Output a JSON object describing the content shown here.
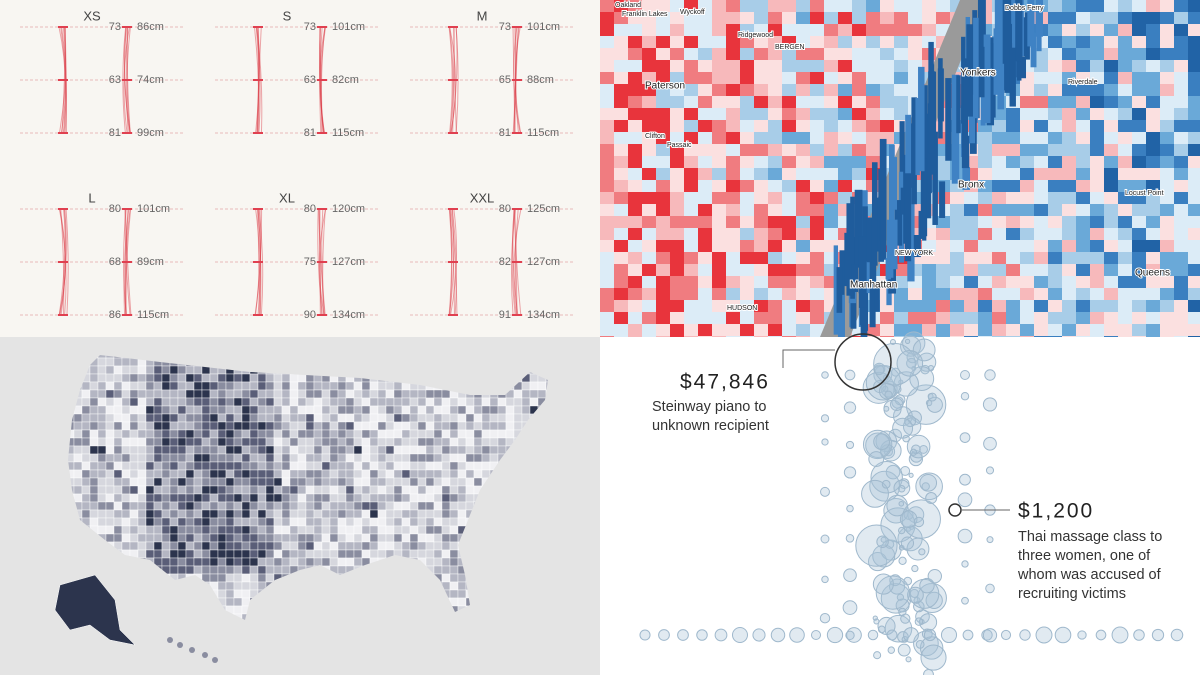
{
  "size_panels": [
    {
      "size": "XS",
      "rows": [
        {
          "left": 73,
          "right": "86cm"
        },
        {
          "left": 63,
          "right": "74cm"
        },
        {
          "left": 81,
          "right": "99cm"
        }
      ]
    },
    {
      "size": "S",
      "rows": [
        {
          "left": 73,
          "right": "101cm"
        },
        {
          "left": 63,
          "right": "82cm"
        },
        {
          "left": 81,
          "right": "115cm"
        }
      ]
    },
    {
      "size": "M",
      "rows": [
        {
          "left": 73,
          "right": "101cm"
        },
        {
          "left": 65,
          "right": "88cm"
        },
        {
          "left": 81,
          "right": "115cm"
        }
      ]
    },
    {
      "size": "L",
      "rows": [
        {
          "left": 80,
          "right": "101cm"
        },
        {
          "left": 68,
          "right": "89cm"
        },
        {
          "left": 86,
          "right": "115cm"
        }
      ]
    },
    {
      "size": "XL",
      "rows": [
        {
          "left": 80,
          "right": "120cm"
        },
        {
          "left": 75,
          "right": "127cm"
        },
        {
          "left": 90,
          "right": "134cm"
        }
      ]
    },
    {
      "size": "XXL",
      "rows": [
        {
          "left": 80,
          "right": "125cm"
        },
        {
          "left": 82,
          "right": "127cm"
        },
        {
          "left": 91,
          "right": "134cm"
        }
      ]
    }
  ],
  "map_labels": [
    "Oakland",
    "Franklin Lakes",
    "Wyckoff",
    "Ridgewood",
    "BERGEN",
    "Dobbs Ferry",
    "Paterson",
    "Yonkers",
    "Riverdale",
    "Clifton",
    "Passaic",
    "Bronx",
    "Locust Point",
    "NEW YORK",
    "Manhattan",
    "HUDSON",
    "Queens"
  ],
  "annotations": [
    {
      "amount": "$47,846",
      "lines": [
        "Steinway piano to",
        "unknown recipient"
      ]
    },
    {
      "amount": "$1,200",
      "lines": [
        "Thai massage class to",
        "three women, one of",
        "whom was accused of",
        "recruiting victims"
      ]
    }
  ]
}
